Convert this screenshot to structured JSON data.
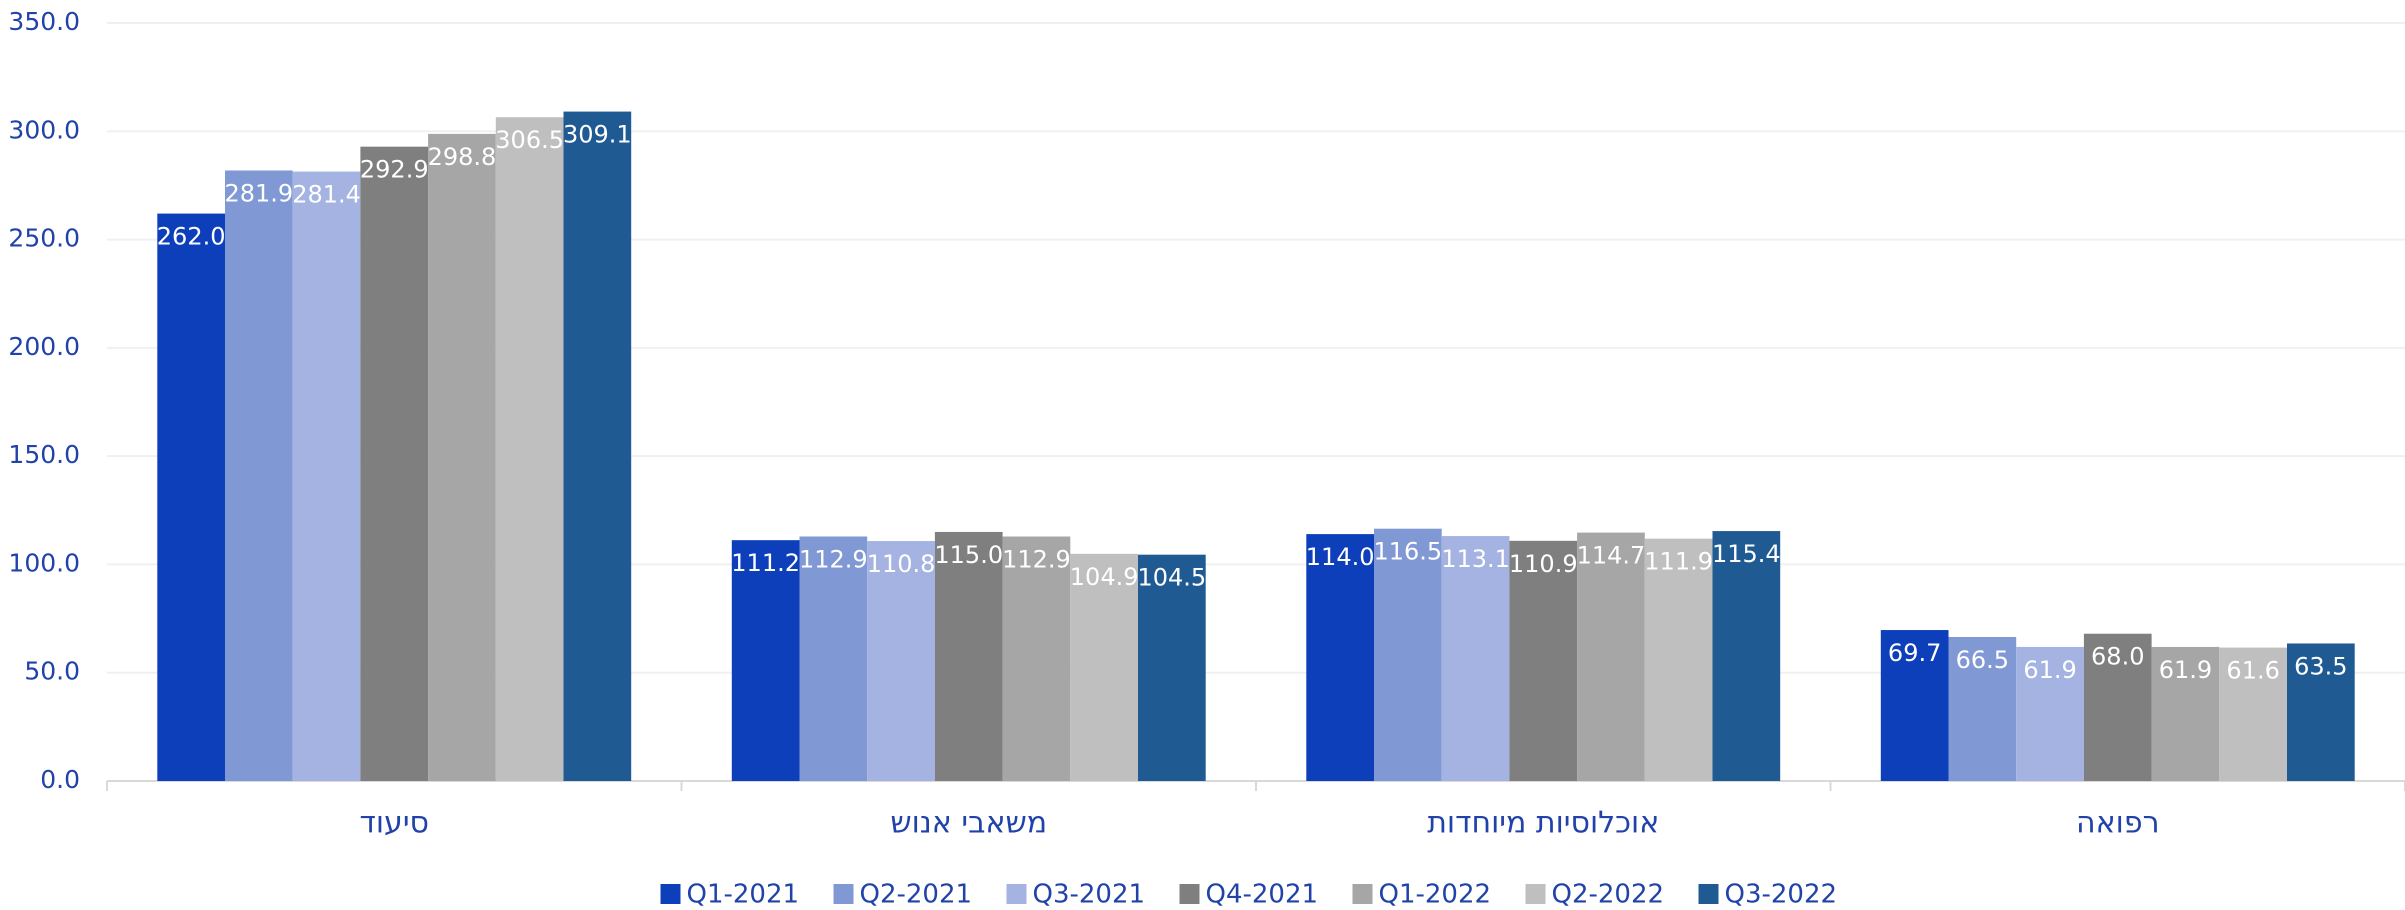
{
  "chart_data": {
    "type": "bar",
    "categories": [
      "סיעוד",
      "משאבי אנוש",
      "אוכלוסיות מיוחדות",
      "רפואה"
    ],
    "series": [
      {
        "name": "Q1-2021",
        "color": "#0e3fbb",
        "values": [
          262.0,
          111.2,
          114.0,
          69.7
        ],
        "value_labels": [
          "262.0",
          "111.2",
          "114.0",
          "69.7"
        ]
      },
      {
        "name": "Q2-2021",
        "color": "#8098d4",
        "values": [
          281.9,
          112.9,
          116.5,
          66.5
        ],
        "value_labels": [
          "281.9",
          "112.9",
          "116.5",
          "66.5"
        ]
      },
      {
        "name": "Q3-2021",
        "color": "#a4b3e1",
        "values": [
          281.4,
          110.8,
          113.1,
          61.9
        ],
        "value_labels": [
          "281.4",
          "110.8",
          "113.1",
          "61.9"
        ]
      },
      {
        "name": "Q4-2021",
        "color": "#7f7f7f",
        "values": [
          292.9,
          115.0,
          110.9,
          68.0
        ],
        "value_labels": [
          "292.9",
          "115.0",
          "110.9",
          "68.0"
        ]
      },
      {
        "name": "Q1-2022",
        "color": "#a6a6a6",
        "values": [
          298.8,
          112.9,
          114.7,
          61.9
        ],
        "value_labels": [
          "298.8",
          "112.9",
          "114.7",
          "61.9"
        ]
      },
      {
        "name": "Q2-2022",
        "color": "#bfbfbf",
        "values": [
          306.5,
          104.9,
          111.9,
          61.6
        ],
        "value_labels": [
          "306.5",
          "104.9",
          "111.9",
          "61.6"
        ]
      },
      {
        "name": "Q3-2022",
        "color": "#1f5a93",
        "values": [
          309.1,
          104.5,
          115.4,
          63.5
        ],
        "value_labels": [
          "309.1",
          "104.5",
          "115.4",
          "63.5"
        ]
      }
    ],
    "ylim": [
      0,
      350
    ],
    "yticks": [
      {
        "value": 0,
        "label": "0.0"
      },
      {
        "value": 50,
        "label": "50.0"
      },
      {
        "value": 100,
        "label": "100.0"
      },
      {
        "value": 150,
        "label": "150.0"
      },
      {
        "value": 200,
        "label": "200.0"
      },
      {
        "value": 250,
        "label": "250.0"
      },
      {
        "value": 300,
        "label": "300.0"
      },
      {
        "value": 350,
        "label": "350.0"
      }
    ],
    "grid": true,
    "legend": "bottom"
  }
}
